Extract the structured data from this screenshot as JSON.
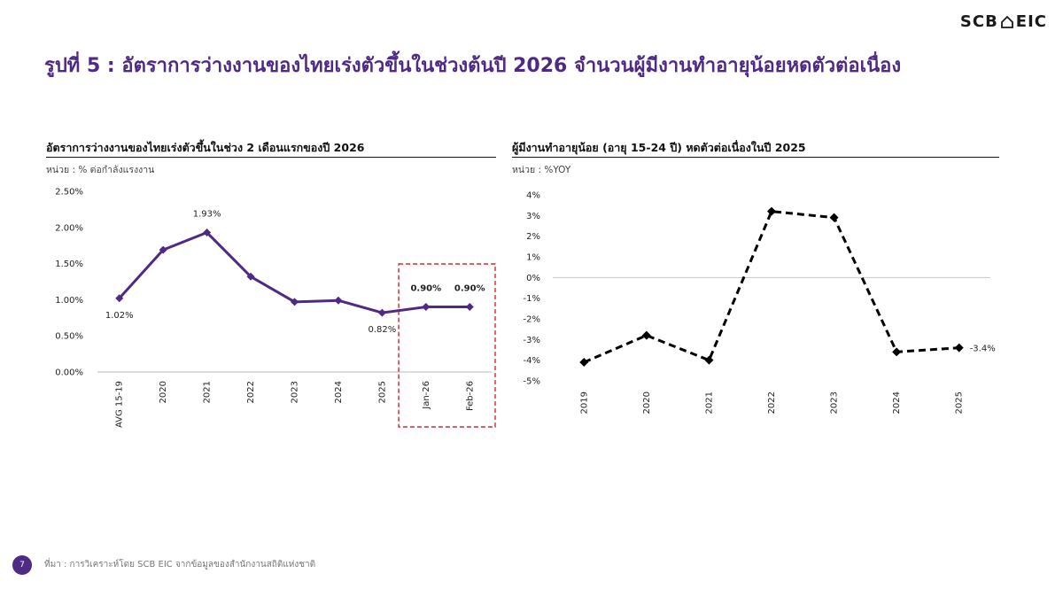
{
  "logo": {
    "left": "SCB",
    "right": "EIC"
  },
  "title": "รูปที่ 5 : อัตราการว่างงานของไทยเร่งตัวขึ้นในช่วงต้นปี 2026 จำนวนผู้มีงานทำอายุน้อยหดตัวต่อเนื่อง",
  "footer": {
    "page": "7",
    "source": "ที่มา : การวิเคราะห์โดย SCB EIC จากข้อมูลของสำนักงานสถิติแห่งชาติ"
  },
  "colors": {
    "brand": "#4e2a84",
    "series_left": "#4e2a84",
    "series_right": "#000000",
    "highlight_box": "#d9262c"
  },
  "chart_data": [
    {
      "type": "line",
      "title": "อัตราการว่างงานของไทยเร่งตัวขึ้นในช่วง 2 เดือนแรกของปี 2026",
      "unit": "หน่วย : % ต่อกำลังแรงงาน",
      "categories": [
        "AVG 15-19",
        "2020",
        "2021",
        "2022",
        "2023",
        "2024",
        "2025",
        "Jan-26",
        "Feb-26"
      ],
      "values": [
        1.02,
        1.69,
        1.93,
        1.32,
        0.97,
        0.99,
        0.82,
        0.9,
        0.9
      ],
      "yticks": [
        "0.00%",
        "0.50%",
        "1.00%",
        "1.50%",
        "2.00%",
        "2.50%"
      ],
      "ylim": [
        0,
        2.5
      ],
      "data_labels": [
        {
          "index": 0,
          "text": "1.02%",
          "pos": "below",
          "bold": false
        },
        {
          "index": 2,
          "text": "1.93%",
          "pos": "above",
          "bold": false
        },
        {
          "index": 6,
          "text": "0.82%",
          "pos": "below",
          "bold": false
        },
        {
          "index": 7,
          "text": "0.90%",
          "pos": "above",
          "bold": true
        },
        {
          "index": 8,
          "text": "0.90%",
          "pos": "above",
          "bold": true
        }
      ],
      "highlight": [
        "Jan-26",
        "Feb-26"
      ],
      "line_style": "solid",
      "grid": false
    },
    {
      "type": "line",
      "title": "ผู้มีงานทำอายุน้อย (อายุ 15-24 ปี) หดตัวต่อเนื่องในปี 2025",
      "unit": "หน่วย : %YOY",
      "categories": [
        "2019",
        "2020",
        "2021",
        "2022",
        "2023",
        "2024",
        "2025"
      ],
      "values": [
        -4.1,
        -2.8,
        -4.0,
        3.2,
        2.9,
        -3.6,
        -3.4
      ],
      "yticks": [
        "-5%",
        "-4%",
        "-3%",
        "-2%",
        "-1%",
        "0%",
        "1%",
        "2%",
        "3%",
        "4%"
      ],
      "ylim": [
        -5,
        4
      ],
      "data_labels": [
        {
          "index": 6,
          "text": "-3.4%",
          "pos": "right",
          "bold": false
        }
      ],
      "line_style": "dashed",
      "marker": "diamond",
      "grid": false
    }
  ]
}
